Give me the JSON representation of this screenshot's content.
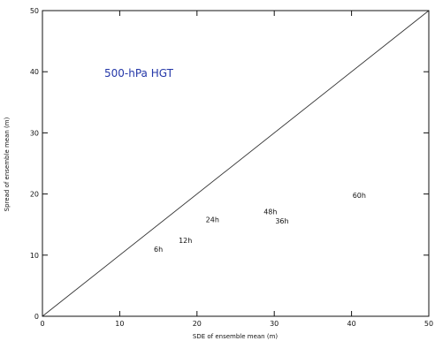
{
  "chart_data": {
    "type": "scatter",
    "title": "500-hPa HGT",
    "xlabel": "SDE of ensemble mean (m)",
    "ylabel": "Spread of ensemble mean (m)",
    "xlim": [
      0,
      50
    ],
    "ylim": [
      0,
      50
    ],
    "xticks": [
      0,
      10,
      20,
      30,
      40,
      50
    ],
    "yticks": [
      0,
      10,
      20,
      30,
      40,
      50
    ],
    "grid": false,
    "reference_line": {
      "from": [
        0,
        0
      ],
      "to": [
        50,
        50
      ]
    },
    "points": [
      {
        "label": "6h",
        "x": 15.0,
        "y": 11.0
      },
      {
        "label": "12h",
        "x": 18.5,
        "y": 12.4
      },
      {
        "label": "24h",
        "x": 22.0,
        "y": 15.8
      },
      {
        "label": "48h",
        "x": 29.5,
        "y": 17.1
      },
      {
        "label": "36h",
        "x": 31.0,
        "y": 15.6
      },
      {
        "label": "60h",
        "x": 41.0,
        "y": 19.8
      }
    ],
    "colors": {
      "title": "#2437a8",
      "axes": "#111111",
      "line": "#333333"
    }
  }
}
